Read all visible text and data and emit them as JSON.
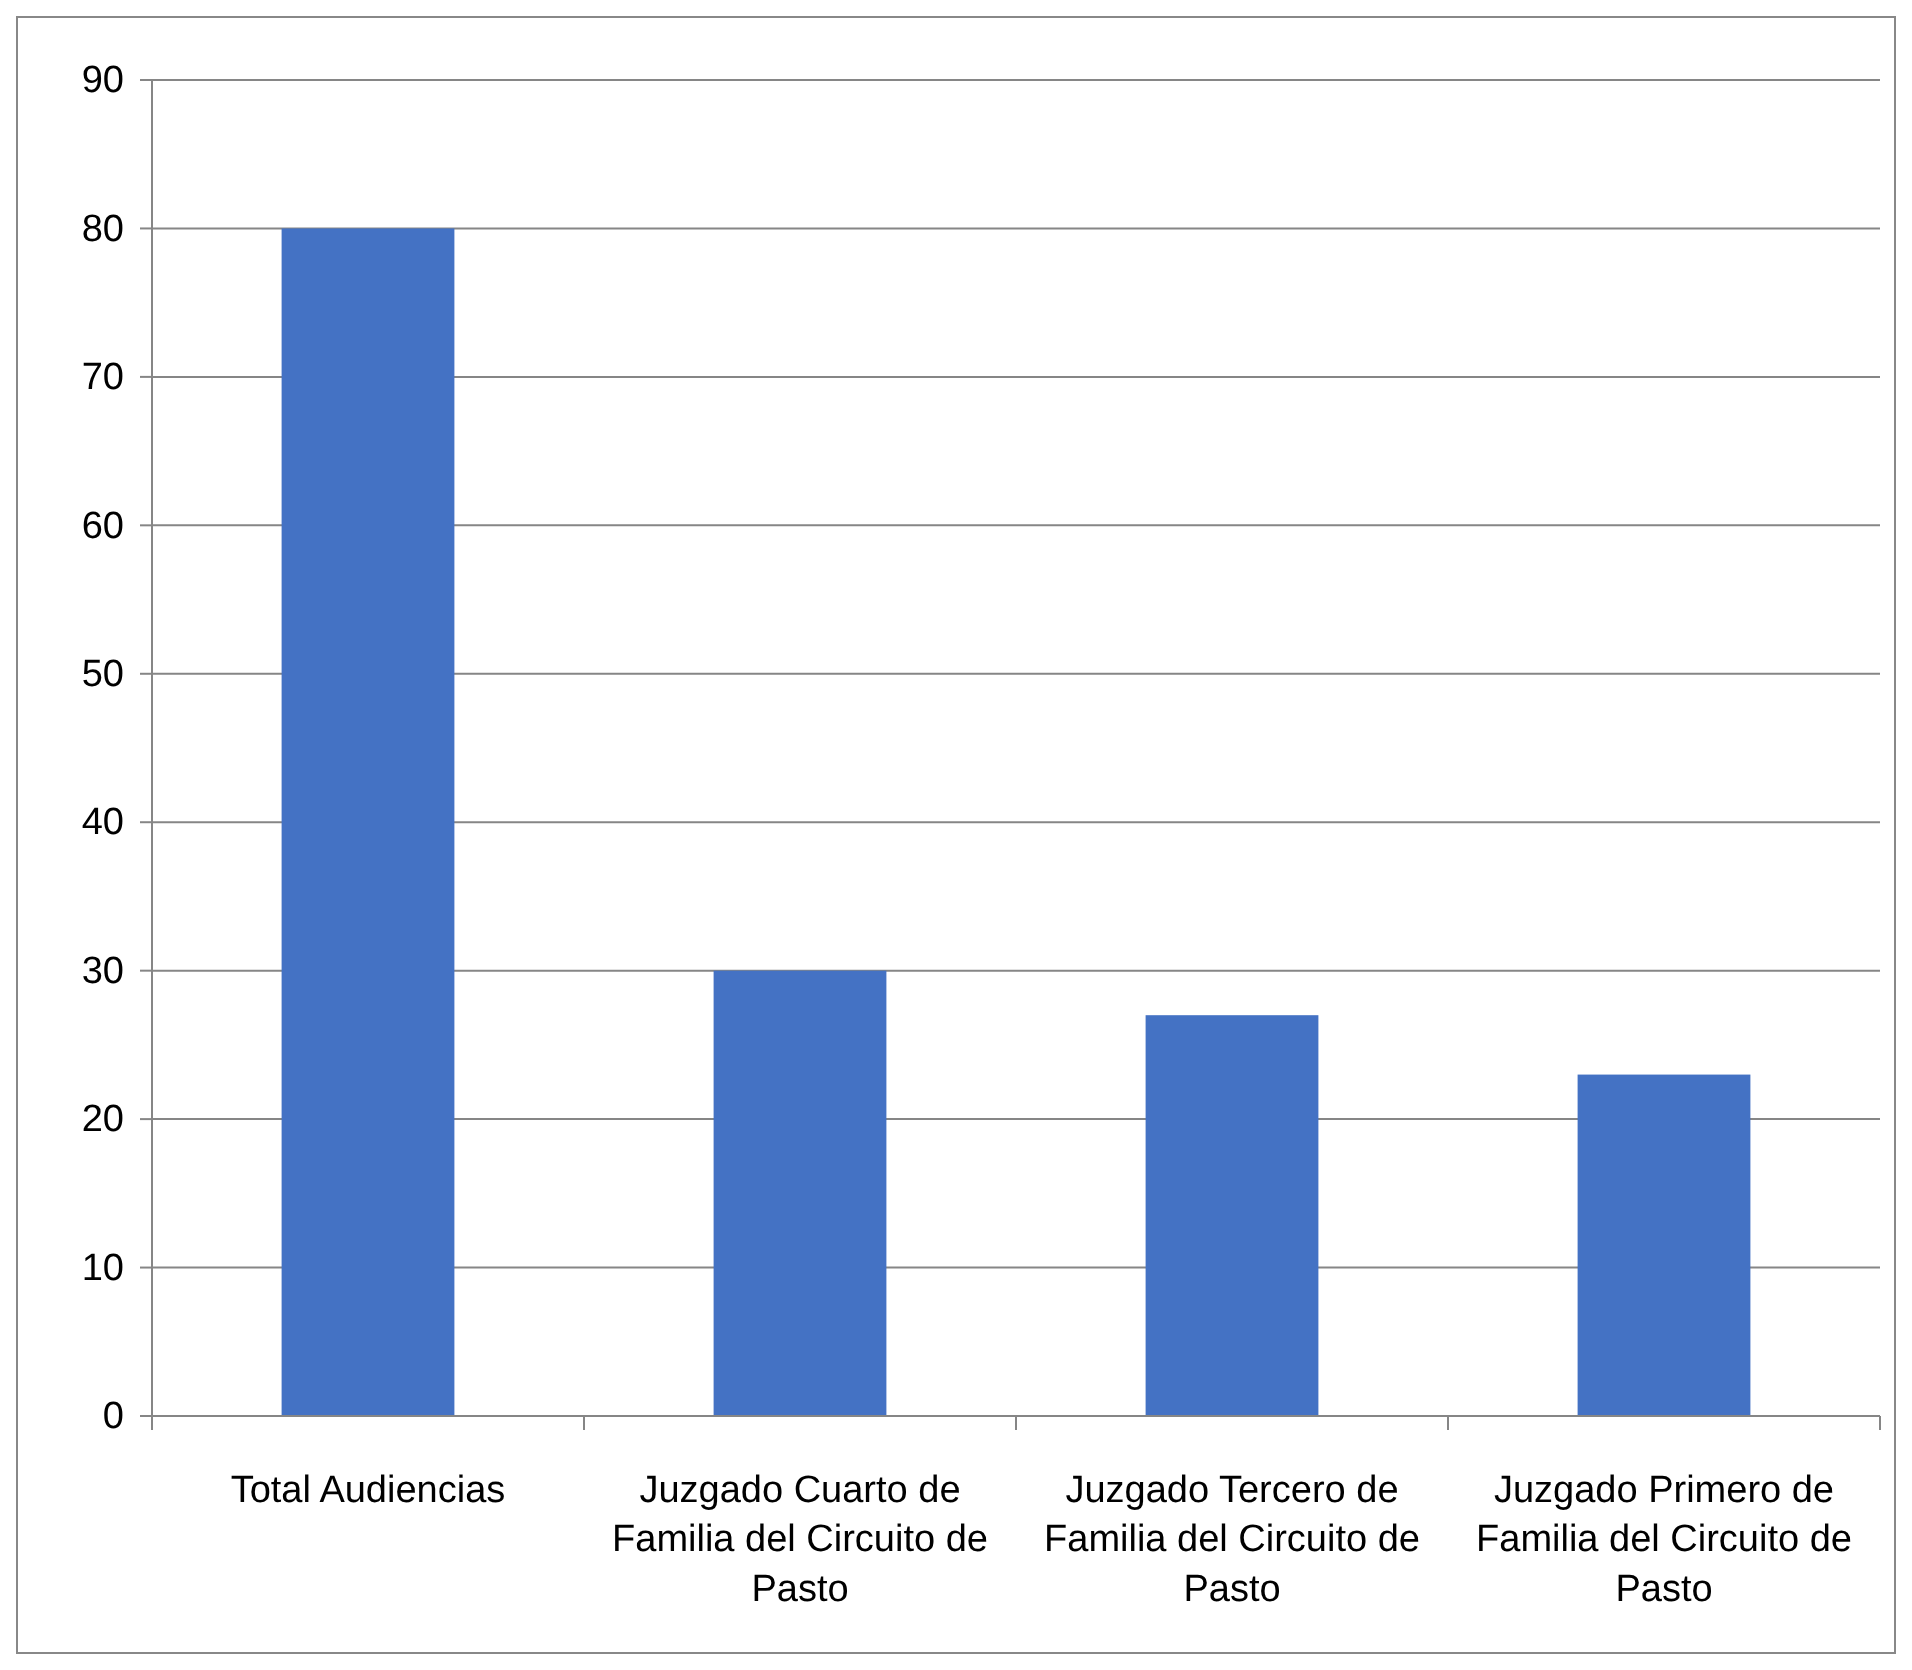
{
  "chart_data": {
    "type": "bar",
    "categories": [
      "Total Audiencias",
      "Juzgado Cuarto de Familia del Circuito de Pasto",
      "Juzgado Tercero de Familia del Circuito de Pasto",
      "Juzgado Primero de Familia del Circuito de Pasto"
    ],
    "values": [
      80,
      30,
      27,
      23
    ],
    "color": "#4472c4",
    "ylim": [
      0,
      90
    ],
    "yticks": [
      0,
      10,
      20,
      30,
      40,
      50,
      60,
      70,
      80,
      90
    ],
    "grid": "y"
  }
}
